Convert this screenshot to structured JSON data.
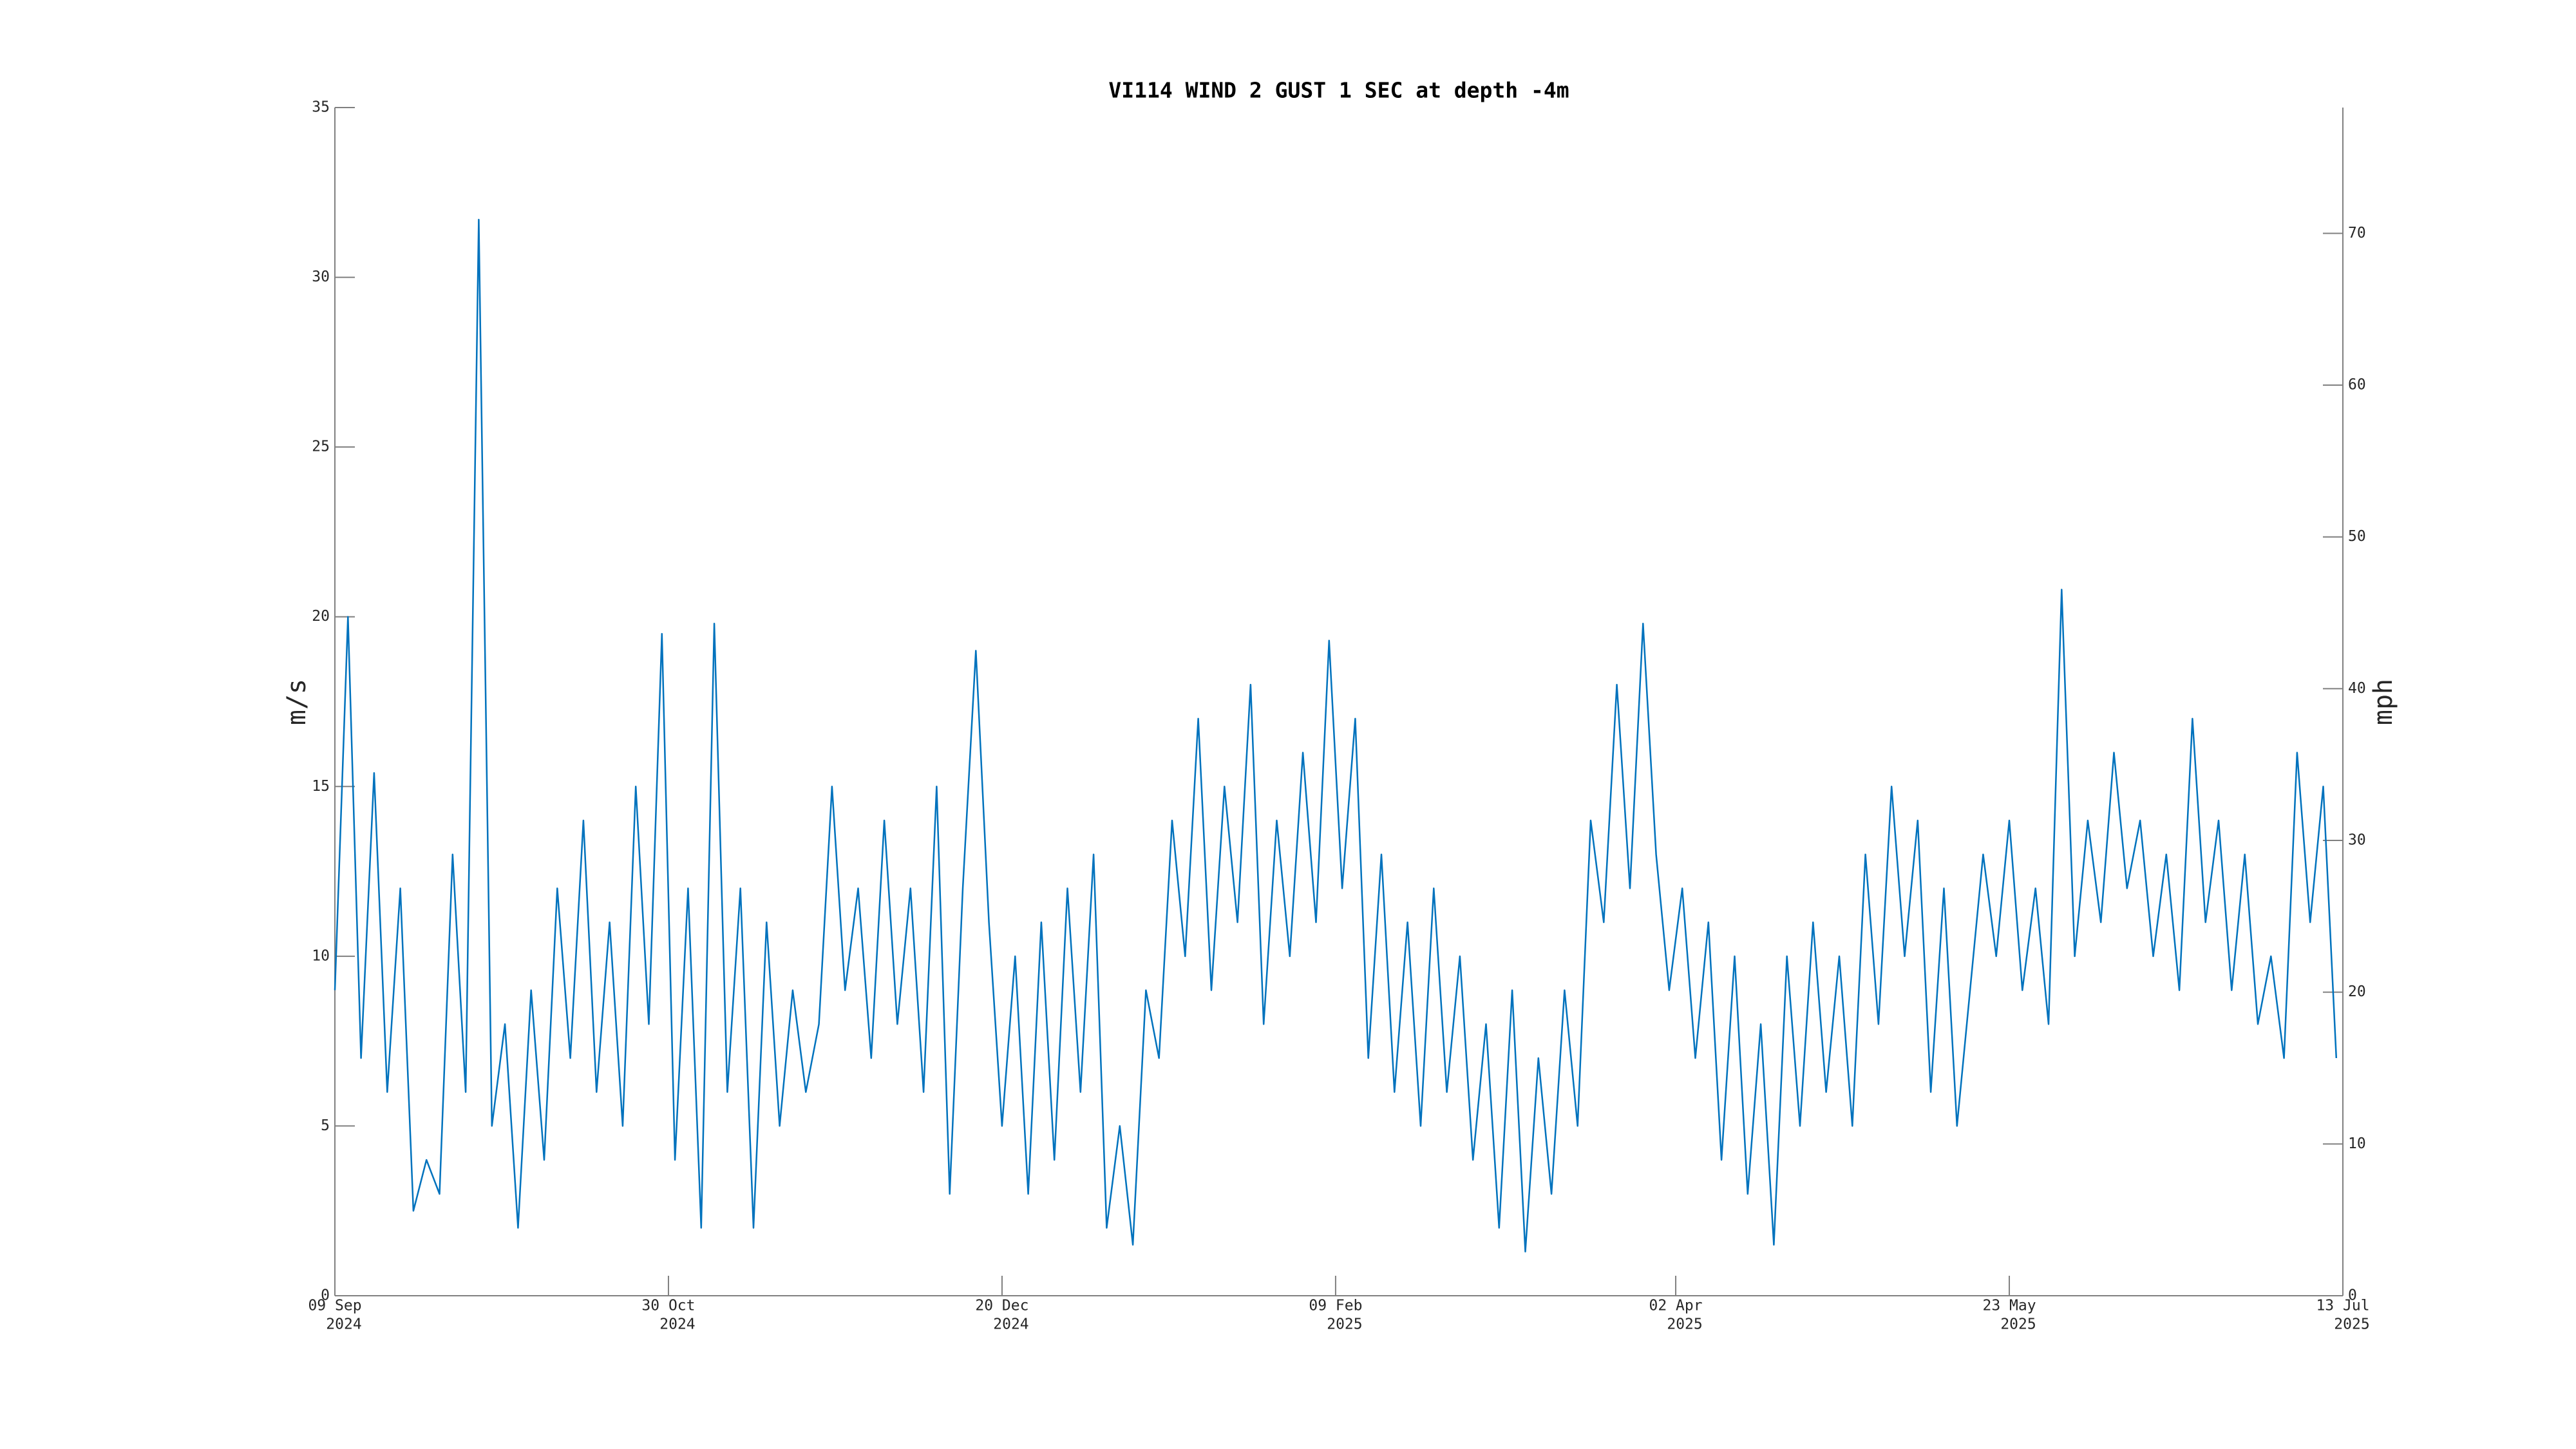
{
  "chart_data": {
    "type": "line",
    "title": "VI114 WIND 2 GUST 1 SEC at depth -4m",
    "ylabel": "m/s",
    "y2label": "mph",
    "xlim": [
      "2024-09-09",
      "2025-07-13"
    ],
    "xticks": [
      {
        "value": "2024-09-09",
        "label": [
          "09 Sep",
          "2024"
        ]
      },
      {
        "value": "2024-10-30",
        "label": [
          "30 Oct",
          "2024"
        ]
      },
      {
        "value": "2024-12-20",
        "label": [
          "20 Dec",
          "2024"
        ]
      },
      {
        "value": "2025-02-09",
        "label": [
          "09 Feb",
          "2025"
        ]
      },
      {
        "value": "2025-04-02",
        "label": [
          "02 Apr",
          "2025"
        ]
      },
      {
        "value": "2025-05-23",
        "label": [
          "23 May",
          "2025"
        ]
      },
      {
        "value": "2025-07-13",
        "label": [
          "13 Jul",
          "2025"
        ]
      }
    ],
    "ylim": [
      0,
      35
    ],
    "yticks": [
      0,
      5,
      10,
      15,
      20,
      25,
      30,
      35
    ],
    "y2lim": [
      0,
      78.29
    ],
    "y2ticks": [
      0,
      10,
      20,
      30,
      40,
      50,
      60,
      70
    ],
    "x": [
      "2024-09-09",
      "2024-09-11",
      "2024-09-13",
      "2024-09-15",
      "2024-09-17",
      "2024-09-19",
      "2024-09-21",
      "2024-09-23",
      "2024-09-25",
      "2024-09-27",
      "2024-09-29",
      "2024-10-01",
      "2024-10-03",
      "2024-10-05",
      "2024-10-07",
      "2024-10-09",
      "2024-10-11",
      "2024-10-13",
      "2024-10-15",
      "2024-10-17",
      "2024-10-19",
      "2024-10-21",
      "2024-10-23",
      "2024-10-25",
      "2024-10-27",
      "2024-10-29",
      "2024-10-31",
      "2024-11-02",
      "2024-11-04",
      "2024-11-06",
      "2024-11-08",
      "2024-11-10",
      "2024-11-12",
      "2024-11-14",
      "2024-11-16",
      "2024-11-18",
      "2024-11-20",
      "2024-11-22",
      "2024-11-24",
      "2024-11-26",
      "2024-11-28",
      "2024-11-30",
      "2024-12-02",
      "2024-12-04",
      "2024-12-06",
      "2024-12-08",
      "2024-12-10",
      "2024-12-12",
      "2024-12-14",
      "2024-12-16",
      "2024-12-18",
      "2024-12-20",
      "2024-12-22",
      "2024-12-24",
      "2024-12-26",
      "2024-12-28",
      "2024-12-30",
      "2025-01-01",
      "2025-01-03",
      "2025-01-05",
      "2025-01-07",
      "2025-01-09",
      "2025-01-11",
      "2025-01-13",
      "2025-01-15",
      "2025-01-17",
      "2025-01-19",
      "2025-01-21",
      "2025-01-23",
      "2025-01-25",
      "2025-01-27",
      "2025-01-29",
      "2025-01-31",
      "2025-02-02",
      "2025-02-04",
      "2025-02-06",
      "2025-02-08",
      "2025-02-10",
      "2025-02-12",
      "2025-02-14",
      "2025-02-16",
      "2025-02-18",
      "2025-02-20",
      "2025-02-22",
      "2025-02-24",
      "2025-02-26",
      "2025-02-28",
      "2025-03-02",
      "2025-03-04",
      "2025-03-06",
      "2025-03-08",
      "2025-03-10",
      "2025-03-12",
      "2025-03-14",
      "2025-03-16",
      "2025-03-18",
      "2025-03-20",
      "2025-03-22",
      "2025-03-24",
      "2025-03-26",
      "2025-03-28",
      "2025-03-30",
      "2025-04-01",
      "2025-04-03",
      "2025-04-05",
      "2025-04-07",
      "2025-04-09",
      "2025-04-11",
      "2025-04-13",
      "2025-04-15",
      "2025-04-17",
      "2025-04-19",
      "2025-04-21",
      "2025-04-23",
      "2025-04-25",
      "2025-04-27",
      "2025-04-29",
      "2025-05-01",
      "2025-05-03",
      "2025-05-05",
      "2025-05-07",
      "2025-05-09",
      "2025-05-11",
      "2025-05-13",
      "2025-05-15",
      "2025-05-17",
      "2025-05-19",
      "2025-05-21",
      "2025-05-23",
      "2025-05-25",
      "2025-05-27",
      "2025-05-29",
      "2025-05-31",
      "2025-06-02",
      "2025-06-04",
      "2025-06-06",
      "2025-06-08",
      "2025-06-10",
      "2025-06-12",
      "2025-06-14",
      "2025-06-16",
      "2025-06-18",
      "2025-06-20",
      "2025-06-22",
      "2025-06-24",
      "2025-06-26",
      "2025-06-28",
      "2025-06-30",
      "2025-07-02",
      "2025-07-04",
      "2025-07-06",
      "2025-07-08",
      "2025-07-10",
      "2025-07-12"
    ],
    "series": [
      {
        "color": "#0072bd",
        "values": [
          9,
          20,
          7,
          15.4,
          6,
          12,
          2.5,
          4,
          3,
          13,
          6,
          31.7,
          5,
          8,
          2,
          9,
          4,
          12,
          7,
          14,
          6,
          11,
          5,
          15,
          8,
          19.5,
          4,
          12,
          2,
          19.8,
          6,
          12,
          2,
          11,
          5,
          9,
          6,
          8,
          15,
          9,
          12,
          7,
          14,
          8,
          12,
          6,
          15,
          3,
          12,
          19,
          11,
          5,
          10,
          3,
          11,
          4,
          12,
          6,
          13,
          2,
          5,
          1.5,
          9,
          7,
          14,
          10,
          17,
          9,
          15,
          11,
          18,
          8,
          14,
          10,
          16,
          11,
          19.3,
          12,
          17,
          7,
          13,
          6,
          11,
          5,
          12,
          6,
          10,
          4,
          8,
          2,
          9,
          1.3,
          7,
          3,
          9,
          5,
          14,
          11,
          18,
          12,
          19.8,
          13,
          9,
          12,
          7,
          11,
          4,
          10,
          3,
          8,
          1.5,
          10,
          5,
          11,
          6,
          10,
          5,
          13,
          8,
          15,
          10,
          14,
          6,
          12,
          5,
          9,
          13,
          10,
          14,
          9,
          12,
          8,
          20.8,
          10,
          14,
          11,
          16,
          12,
          14,
          10,
          13,
          9,
          17,
          11,
          14,
          9,
          13,
          8,
          10,
          7,
          16,
          11,
          15,
          7
        ]
      }
    ]
  }
}
